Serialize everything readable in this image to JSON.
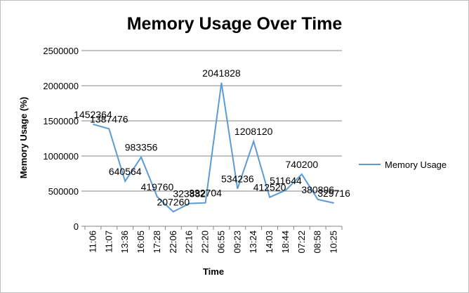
{
  "chart_data": {
    "type": "line",
    "title": "Memory Usage Over Time",
    "xlabel": "Time",
    "ylabel": "Memory Usage (%)",
    "ylim": [
      0,
      2500000
    ],
    "yticks": [
      "0",
      "500000",
      "1000000",
      "1500000",
      "2000000",
      "2500000"
    ],
    "grid": true,
    "legend_position": "right",
    "categories": [
      "11:06",
      "11:07",
      "13:36",
      "16:05",
      "17:28",
      "22:06",
      "22:16",
      "22:20",
      "06:55",
      "09:23",
      "13:24",
      "14:03",
      "18:44",
      "07:22",
      "08:58",
      "10:25"
    ],
    "series": [
      {
        "name": "Memory Usage",
        "color": "#5b9bd5",
        "values": [
          1452364,
          1387476,
          640564,
          983356,
          419760,
          207260,
          323882,
          332704,
          2041828,
          534236,
          1208120,
          412520,
          511644,
          740200,
          380896,
          329716
        ]
      }
    ]
  }
}
